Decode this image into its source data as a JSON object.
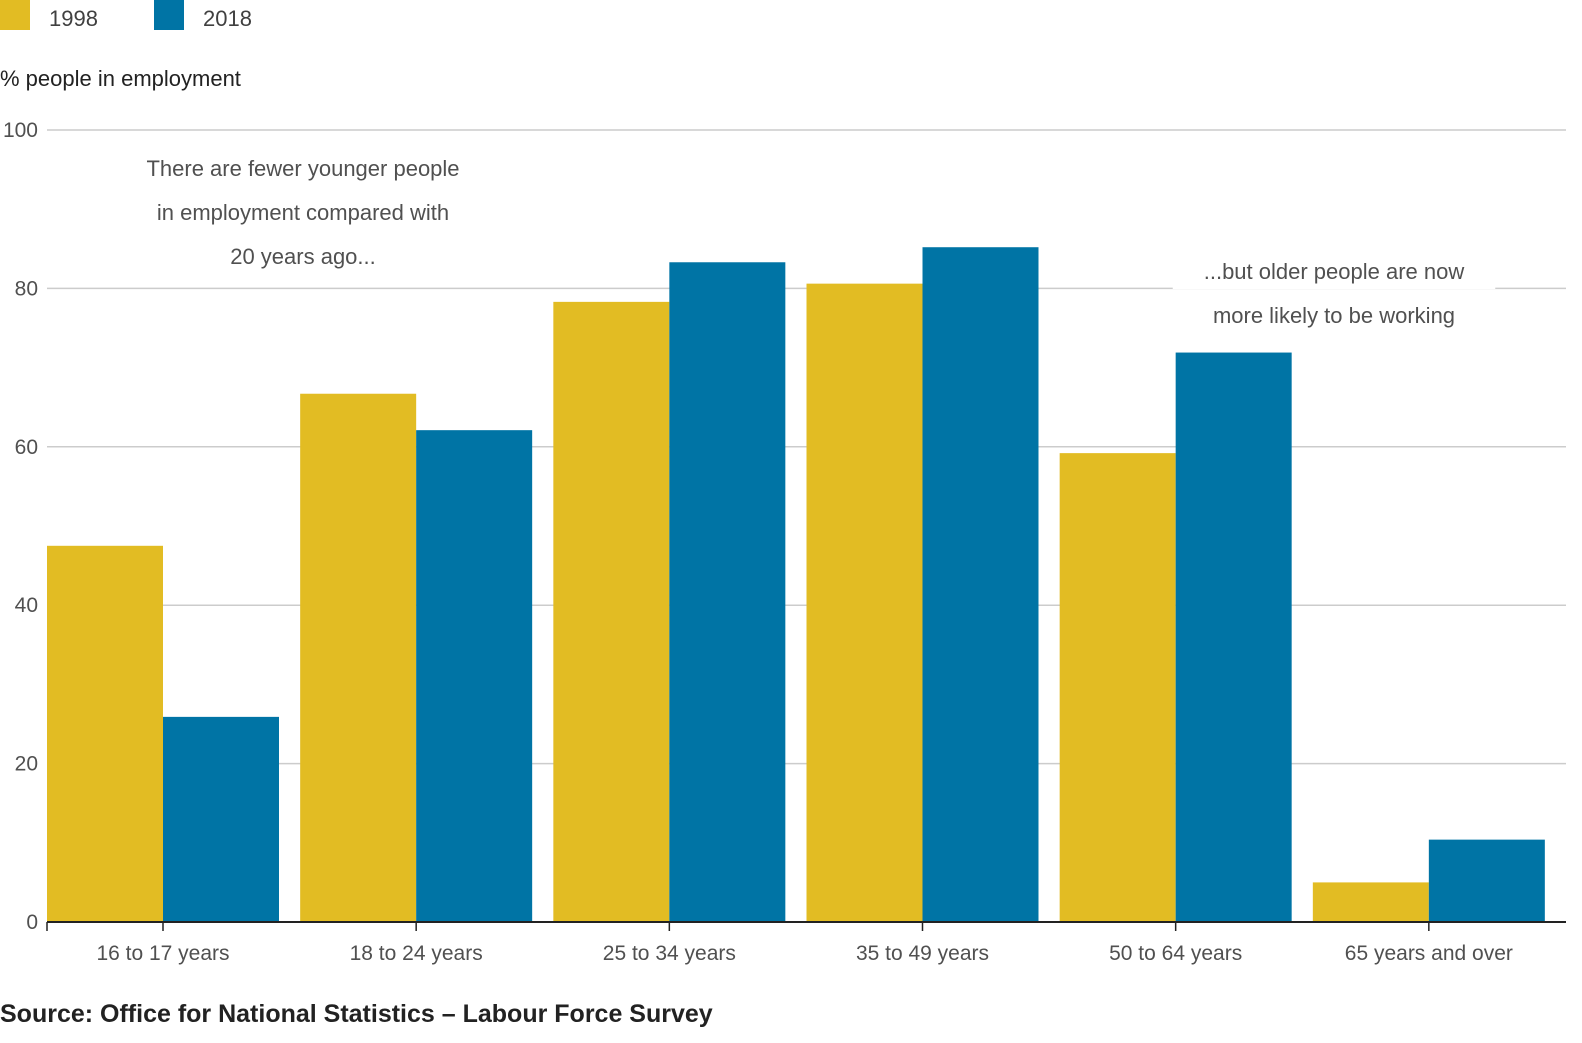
{
  "legend": [
    {
      "label": "1998",
      "color": "#e2bc23"
    },
    {
      "label": "2018",
      "color": "#0074a5"
    }
  ],
  "source": "Source: Office for National Statistics – Labour Force Survey",
  "chart_data": {
    "type": "bar",
    "title": "",
    "ylabel": "% people in employment",
    "xlabel": "",
    "ylim": [
      0,
      100
    ],
    "yticks": [
      0,
      20,
      40,
      60,
      80,
      100
    ],
    "grid": true,
    "legend_position": "top-left",
    "categories": [
      "16 to 17 years",
      "18 to 24 years",
      "25 to 34 years",
      "35 to 49 years",
      "50 to 64 years",
      "65 years and over"
    ],
    "series": [
      {
        "name": "1998",
        "color": "#e2bc23",
        "values": [
          47.5,
          66.7,
          78.3,
          80.6,
          59.2,
          5.0
        ]
      },
      {
        "name": "2018",
        "color": "#0074a5",
        "values": [
          25.9,
          62.1,
          83.3,
          85.2,
          71.9,
          10.4
        ]
      }
    ],
    "annotations": [
      {
        "lines": [
          "There are fewer younger people",
          "in employment compared with",
          "20 years ago..."
        ]
      },
      {
        "lines": [
          "...but older people are now",
          "more likely to be working"
        ]
      }
    ]
  }
}
